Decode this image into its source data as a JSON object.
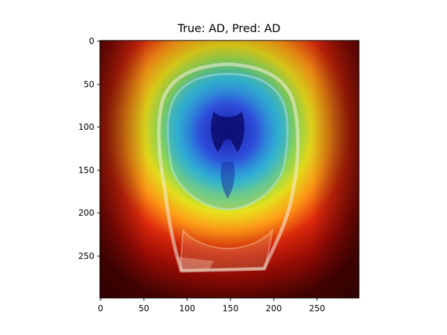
{
  "figure": {
    "title": "True: AD, Pred: AD",
    "image": {
      "description_icon": "brain-mri-heatmap-overlay",
      "extent_x": [
        0,
        299
      ],
      "extent_y": [
        299,
        0
      ],
      "colormap": "jet"
    },
    "x_ticks": [
      "0",
      "50",
      "100",
      "150",
      "200",
      "250"
    ],
    "y_ticks": [
      "0",
      "50",
      "100",
      "150",
      "200",
      "250"
    ]
  }
}
